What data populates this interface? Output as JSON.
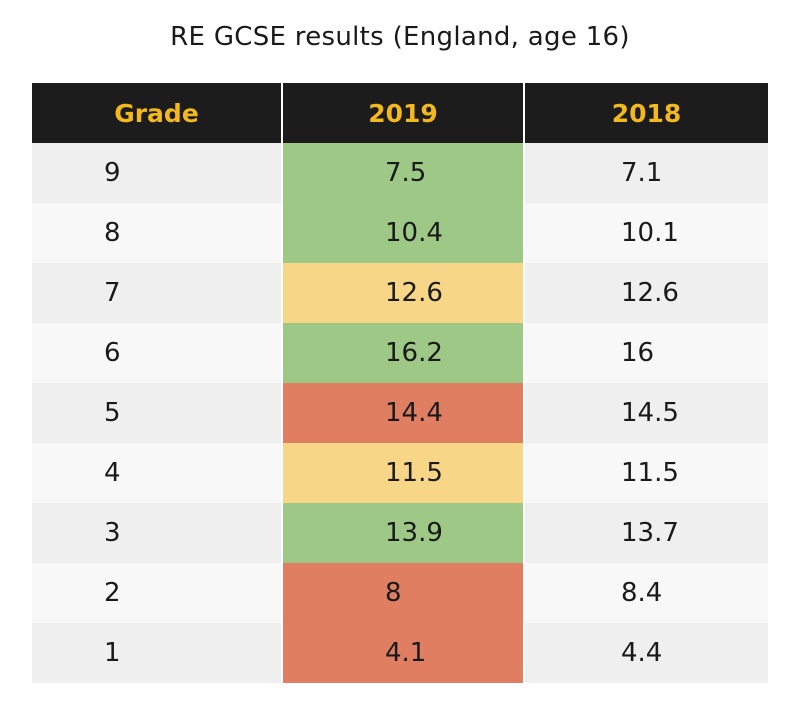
{
  "title": "RE GCSE results (England, age 16)",
  "colors": {
    "header_bg": "#1c1c1c",
    "header_text": "#f2b81c",
    "green": "#9dc886",
    "yellow": "#f7d688",
    "red": "#e07e62",
    "row_light": "#f8f8f8",
    "row_dark": "#efefef"
  },
  "chart_data": {
    "type": "table",
    "title": "RE GCSE results (England, age 16)",
    "columns": [
      "Grade",
      "2019",
      "2018"
    ],
    "rows": [
      {
        "grade": "9",
        "y2019": "7.5",
        "y2018": "7.1",
        "highlight": "green"
      },
      {
        "grade": "8",
        "y2019": "10.4",
        "y2018": "10.1",
        "highlight": "green"
      },
      {
        "grade": "7",
        "y2019": "12.6",
        "y2018": "12.6",
        "highlight": "yellow"
      },
      {
        "grade": "6",
        "y2019": "16.2",
        "y2018": "16",
        "highlight": "green"
      },
      {
        "grade": "5",
        "y2019": "14.4",
        "y2018": "14.5",
        "highlight": "red"
      },
      {
        "grade": "4",
        "y2019": "11.5",
        "y2018": "11.5",
        "highlight": "yellow"
      },
      {
        "grade": "3",
        "y2019": "13.9",
        "y2018": "13.7",
        "highlight": "green"
      },
      {
        "grade": "2",
        "y2019": "8",
        "y2018": "8.4",
        "highlight": "red"
      },
      {
        "grade": "1",
        "y2019": "4.1",
        "y2018": "4.4",
        "highlight": "red"
      }
    ]
  }
}
